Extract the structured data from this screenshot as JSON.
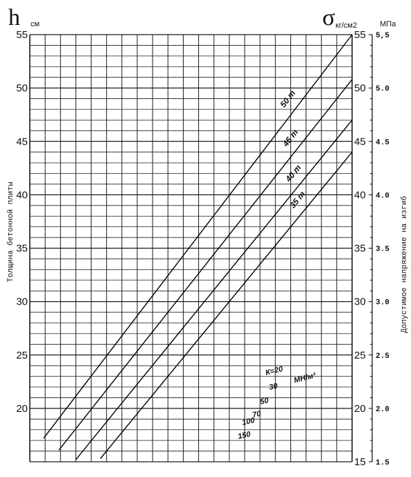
{
  "chart_data": {
    "type": "line",
    "title": "",
    "left_axis": {
      "symbol": "h",
      "unit": "см",
      "label": "Толщина бетонной плиты",
      "ticks": [
        "55",
        "50",
        "45",
        "40",
        "35",
        "30",
        "25",
        "20"
      ],
      "ylim": [
        15,
        55
      ]
    },
    "right_axis": {
      "symbol": "σ",
      "unit": "кг/см2",
      "ticks": [
        "55",
        "50",
        "45",
        "40",
        "35",
        "30",
        "25",
        "20",
        "15"
      ]
    },
    "outer_axis": {
      "unit": "МПа",
      "label": "Допустимое напряжение на изгиб",
      "ticks": [
        "5,5",
        "5.0",
        "4.5",
        "4.0",
        "3.5",
        "3.0",
        "2.5",
        "2.0",
        "1.5"
      ],
      "ylim": [
        1.5,
        5.5
      ]
    },
    "grid": true,
    "grid_columns": 21,
    "series": [
      {
        "name": "50 т",
        "values": [
          {
            "x": 0.9,
            "y": 17.2
          },
          {
            "x": 21,
            "y": 55.0
          }
        ]
      },
      {
        "name": "45 т",
        "values": [
          {
            "x": 1.9,
            "y": 16.1
          },
          {
            "x": 21,
            "y": 50.8
          }
        ]
      },
      {
        "name": "40 т",
        "values": [
          {
            "x": 3.0,
            "y": 15.2
          },
          {
            "x": 21,
            "y": 47.0
          }
        ]
      },
      {
        "name": "35 т",
        "values": [
          {
            "x": 4.6,
            "y": 15.3
          },
          {
            "x": 21,
            "y": 44.0
          }
        ]
      }
    ],
    "k_labels": {
      "first": "К=20",
      "unit": "МН/м³",
      "values": [
        "30",
        "50",
        "70",
        "100",
        "150"
      ]
    }
  }
}
